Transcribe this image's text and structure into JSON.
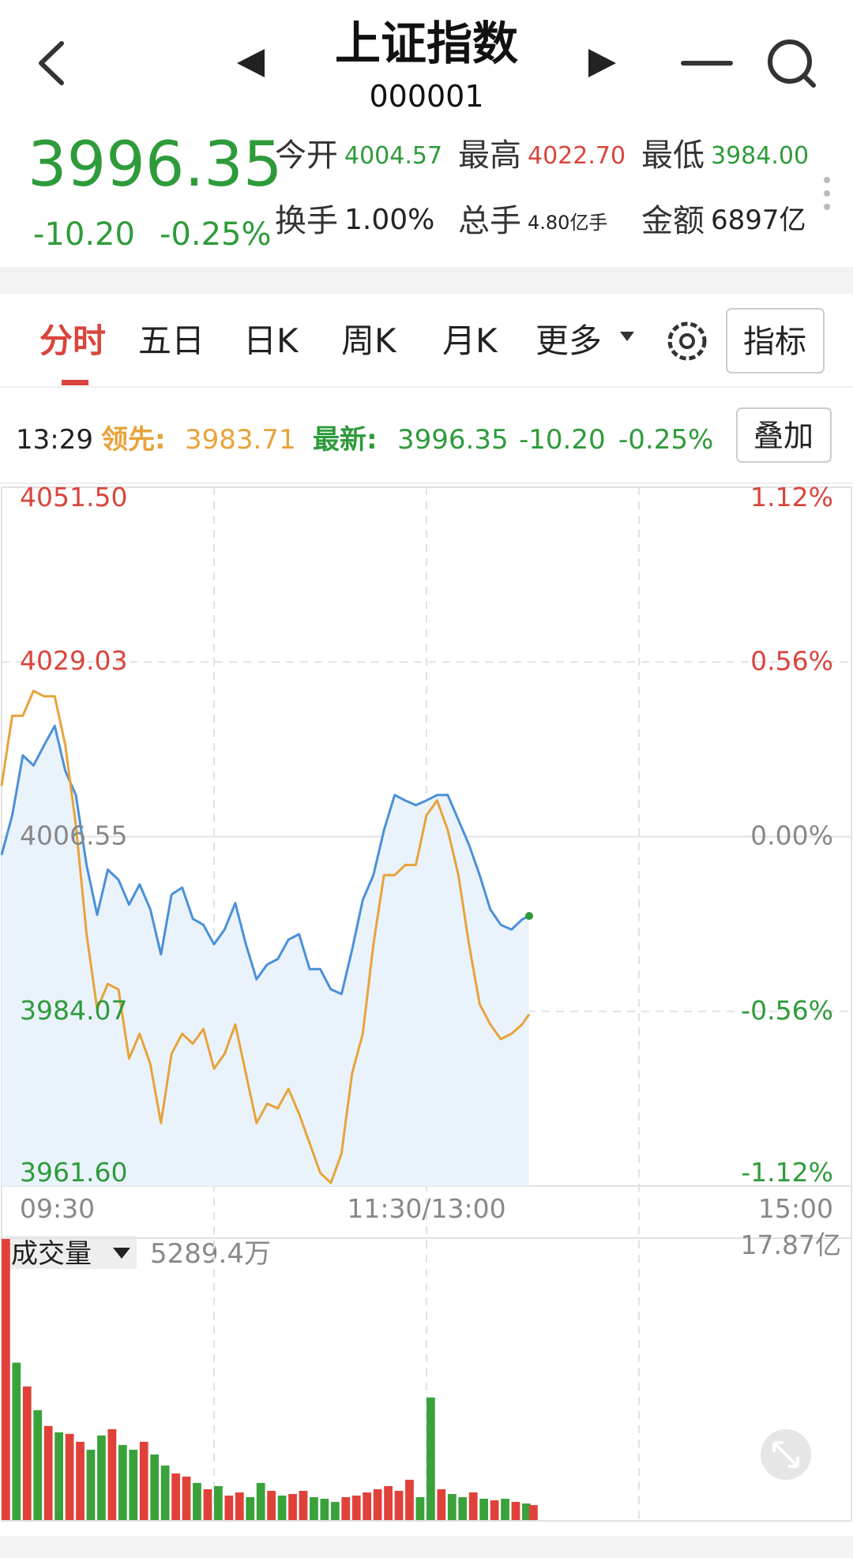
{
  "header": {
    "title": "上证指数",
    "code": "000001"
  },
  "quote": {
    "price": "3996.35",
    "change": "-10.20",
    "change_pct": "-0.25%",
    "fields": [
      {
        "label": "今开",
        "value": "4004.57",
        "color": "#2e9b3a"
      },
      {
        "label": "最高",
        "value": "4022.70",
        "color": "#d9453d"
      },
      {
        "label": "最低",
        "value": "3984.00",
        "color": "#2e9b3a"
      },
      {
        "label": "换手",
        "value": "1.00%",
        "color": "#222222"
      },
      {
        "label": "总手",
        "value": "4.80亿手",
        "color": "#222222"
      },
      {
        "label": "金额",
        "value": "6897亿",
        "color": "#222222"
      }
    ]
  },
  "tabs": [
    "分时",
    "五日",
    "日K",
    "周K",
    "月K",
    "更多"
  ],
  "indicator_button": "指标",
  "info_bar": {
    "time": "13:29",
    "lead_label": "领先:",
    "lead_value": "3983.71",
    "latest_label": "最新:",
    "latest_value": "3996.35",
    "latest_change": "-10.20",
    "latest_pct": "-0.25%",
    "overlay_button": "叠加"
  },
  "chart_data": [
    {
      "type": "line",
      "x": [
        0,
        3,
        6,
        9,
        12,
        15,
        18,
        21,
        24,
        27,
        30,
        33,
        36,
        39,
        42,
        45,
        48,
        51,
        54,
        57,
        60,
        63,
        66,
        69,
        72,
        75,
        78,
        81,
        84,
        87,
        90,
        93,
        96,
        99,
        102,
        105,
        108,
        111,
        114,
        117,
        120,
        123,
        126,
        129,
        132,
        135,
        138,
        141,
        144,
        147,
        149
      ],
      "xlim": [
        0,
        240
      ],
      "xticks": [
        {
          "value": 0,
          "label": "09:30"
        },
        {
          "value": 120,
          "label": "11:30/13:00"
        },
        {
          "value": 240,
          "label": "15:00"
        }
      ],
      "ylim": [
        3961.6,
        4051.5
      ],
      "yticks": [
        {
          "value": 3961.6,
          "label": "3961.60"
        },
        {
          "value": 3984.07,
          "label": "3984.07"
        },
        {
          "value": 4006.55,
          "label": "4006.55"
        },
        {
          "value": 4029.03,
          "label": "4029.03"
        },
        {
          "value": 4051.5,
          "label": "4051.50"
        }
      ],
      "y2lim": [
        -1.12,
        1.12
      ],
      "y2ticks": [
        {
          "value": -1.12,
          "label": "-1.12%"
        },
        {
          "value": -0.56,
          "label": "-0.56%"
        },
        {
          "value": 0,
          "label": "0.00%"
        },
        {
          "value": 0.56,
          "label": "0.56%"
        },
        {
          "value": 1.12,
          "label": "1.12%"
        }
      ],
      "grid": true,
      "series": [
        {
          "color": "#4a90d9",
          "area_color": "#eaf3fc",
          "values": [
            4004.2,
            4009.3,
            4017.0,
            4015.7,
            4018.3,
            4020.8,
            4015.0,
            4011.9,
            4002.9,
            3996.5,
            4002.3,
            4001.0,
            3997.8,
            4000.4,
            3997.2,
            3991.4,
            3999.1,
            4000.0,
            3996.0,
            3995.2,
            3992.7,
            3994.6,
            3998.0,
            3992.7,
            3988.2,
            3990.1,
            3990.8,
            3993.3,
            3994.0,
            3989.5,
            3989.5,
            3986.9,
            3986.3,
            3992.0,
            3998.4,
            4001.6,
            4007.4,
            4011.9,
            4011.2,
            4010.6,
            4011.2,
            4011.9,
            4011.9,
            4008.7,
            4005.5,
            4001.6,
            3997.2,
            3995.2,
            3994.6,
            3995.9,
            3996.35
          ]
        },
        {
          "color": "#e8a33a",
          "values": [
            4013.1,
            4022.1,
            4022.1,
            4025.3,
            4024.6,
            4024.6,
            4018.3,
            4008.0,
            3994.0,
            3984.4,
            3987.6,
            3986.9,
            3978.0,
            3981.2,
            3977.3,
            3969.7,
            3978.6,
            3981.2,
            3979.9,
            3981.8,
            3976.7,
            3978.6,
            3982.4,
            3976.1,
            3969.7,
            3972.2,
            3971.6,
            3974.1,
            3970.9,
            3967.1,
            3963.3,
            3962.0,
            3965.8,
            3976.1,
            3981.2,
            3992.7,
            4001.6,
            4001.6,
            4002.9,
            4002.9,
            4009.3,
            4011.2,
            4007.4,
            4001.6,
            3992.7,
            3985.0,
            3982.4,
            3980.5,
            3981.2,
            3982.4,
            3983.71
          ]
        }
      ]
    },
    {
      "type": "bar",
      "title": "成交量",
      "current_value_label": "5289.4万",
      "x": [
        0,
        3,
        6,
        9,
        12,
        15,
        18,
        21,
        24,
        27,
        30,
        33,
        36,
        39,
        42,
        45,
        48,
        51,
        54,
        57,
        60,
        63,
        66,
        69,
        72,
        75,
        78,
        81,
        84,
        87,
        90,
        93,
        96,
        99,
        102,
        105,
        108,
        111,
        114,
        117,
        120,
        123,
        126,
        129,
        132,
        135,
        138,
        141,
        144,
        147,
        149
      ],
      "xlim": [
        0,
        240
      ],
      "values": [
        17.87,
        10.0,
        8.5,
        7.0,
        6.0,
        5.6,
        5.5,
        5.0,
        4.5,
        5.4,
        5.8,
        4.8,
        4.5,
        5.0,
        4.2,
        3.5,
        3.0,
        2.8,
        2.4,
        2.0,
        2.2,
        1.6,
        1.8,
        1.5,
        2.4,
        1.9,
        1.6,
        1.7,
        1.9,
        1.5,
        1.4,
        1.2,
        1.5,
        1.6,
        1.8,
        2.0,
        2.2,
        1.9,
        2.6,
        1.5,
        7.8,
        2.0,
        1.7,
        1.5,
        1.8,
        1.4,
        1.3,
        1.4,
        1.2,
        1.1,
        1.0
      ],
      "colors": [
        "#e0413a",
        "#3aa23a",
        "#e0413a",
        "#3aa23a",
        "#e0413a",
        "#3aa23a",
        "#e0413a",
        "#e0413a",
        "#3aa23a",
        "#3aa23a",
        "#e0413a",
        "#3aa23a",
        "#3aa23a",
        "#e0413a",
        "#3aa23a",
        "#3aa23a",
        "#e0413a",
        "#e0413a",
        "#3aa23a",
        "#e0413a",
        "#3aa23a",
        "#e0413a",
        "#e0413a",
        "#3aa23a",
        "#3aa23a",
        "#e0413a",
        "#3aa23a",
        "#e0413a",
        "#e0413a",
        "#3aa23a",
        "#3aa23a",
        "#3aa23a",
        "#e0413a",
        "#e0413a",
        "#e0413a",
        "#e0413a",
        "#e0413a",
        "#e0413a",
        "#e0413a",
        "#3aa23a",
        "#3aa23a",
        "#e0413a",
        "#3aa23a",
        "#3aa23a",
        "#e0413a",
        "#3aa23a",
        "#e0413a",
        "#3aa23a",
        "#e0413a",
        "#3aa23a",
        "#e0413a"
      ],
      "ylim": [
        0,
        17.87
      ],
      "yticks": [
        {
          "value": 17.87,
          "label": "17.87亿"
        }
      ]
    }
  ]
}
